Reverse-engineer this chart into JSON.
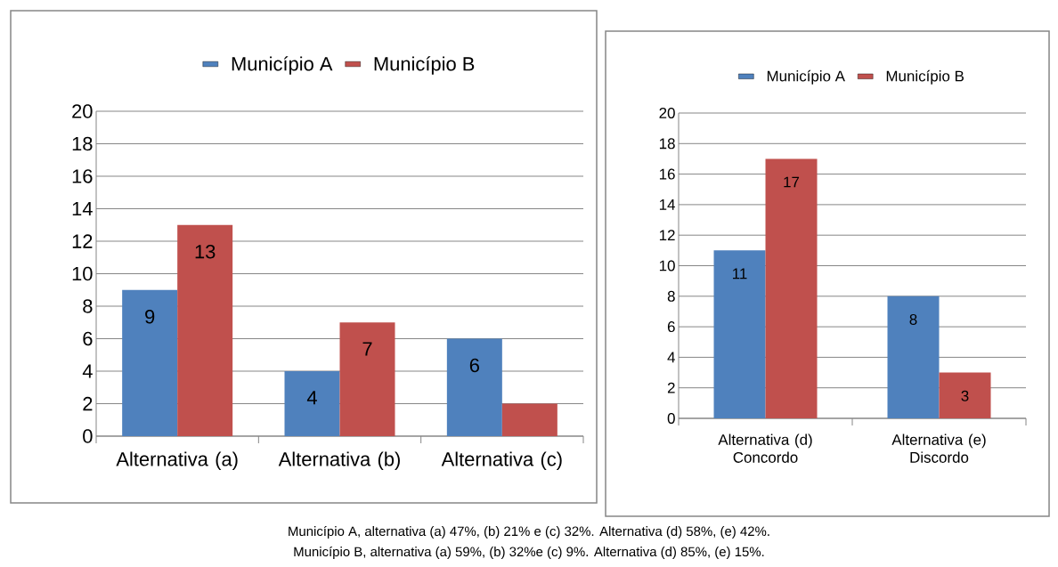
{
  "chart_data": [
    {
      "type": "bar",
      "categories": [
        "Alternativa (a)",
        "Alternativa (b)",
        "Alternativa (c)"
      ],
      "series": [
        {
          "name": "Município A",
          "color": "#4f81bd",
          "values": [
            9,
            4,
            6
          ],
          "value_labels": [
            "9",
            "4",
            "6"
          ]
        },
        {
          "name": "Município B",
          "color": "#c0504d",
          "values": [
            13,
            7,
            2
          ],
          "value_labels": [
            "13",
            "7",
            null
          ]
        }
      ],
      "ylim": [
        0,
        20
      ],
      "yticks": [
        0,
        2,
        4,
        6,
        8,
        10,
        12,
        14,
        16,
        18,
        20
      ],
      "grid": "y",
      "legend": "top",
      "annotations": [
        "Município A, alternativa (a) 47%, (b) 21% e (c) 32%. Alternativa (d) 58%, (e) 42%.",
        "Município B, alternativa (a) 59%, (b) 32%e (c) 9%. Alternativa (d) 85%, (e) 15%."
      ]
    },
    {
      "type": "bar",
      "categories": [
        "Alternativa (d)\nConcordo",
        "Alternativa (e)\nDiscordo"
      ],
      "series": [
        {
          "name": "Município A",
          "color": "#4f81bd",
          "values": [
            11,
            8
          ],
          "value_labels": [
            "11",
            "8"
          ]
        },
        {
          "name": "Município B",
          "color": "#c0504d",
          "values": [
            17,
            3
          ],
          "value_labels": [
            "17",
            "3"
          ]
        }
      ],
      "ylim": [
        0,
        20
      ],
      "yticks": [
        0,
        2,
        4,
        6,
        8,
        10,
        12,
        14,
        16,
        18,
        20
      ],
      "grid": "y",
      "legend": "top"
    }
  ]
}
